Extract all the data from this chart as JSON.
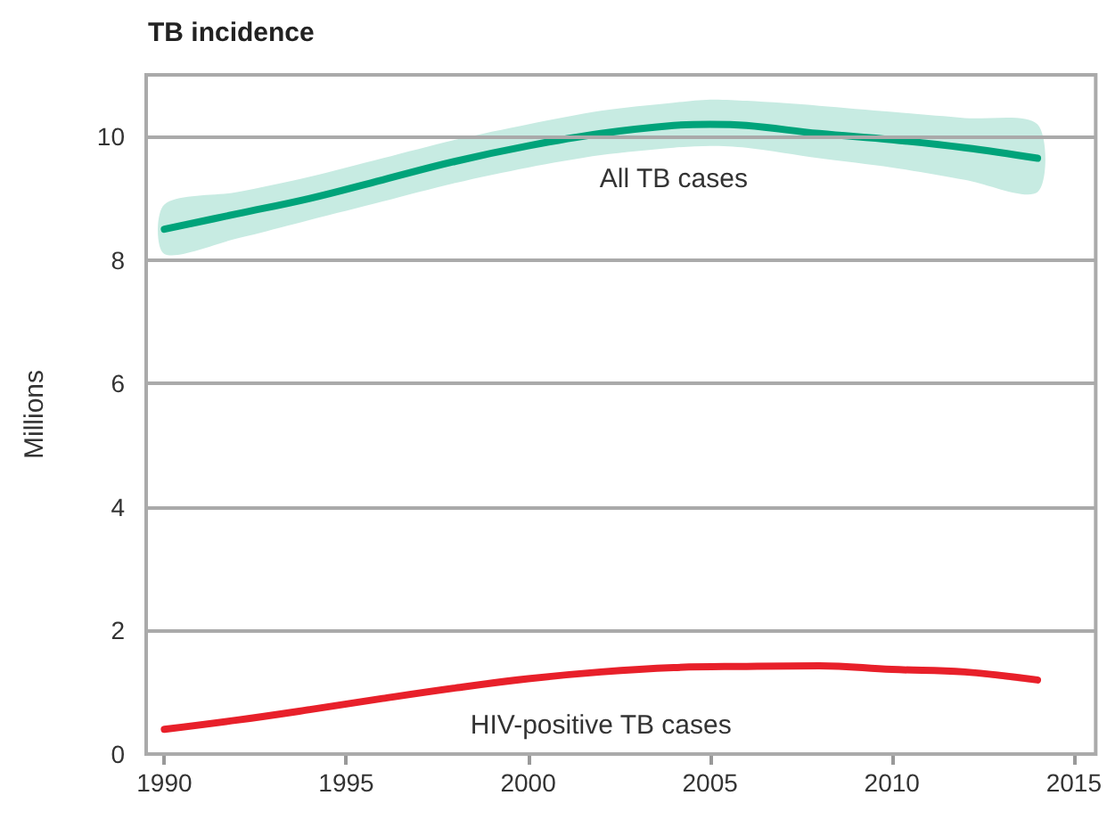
{
  "chart_data": {
    "type": "line",
    "title": "TB incidence",
    "ylabel": "Millions",
    "xlim": [
      1989.5,
      2015.6
    ],
    "xticks": [
      1990,
      1995,
      2000,
      2005,
      2010,
      2015
    ],
    "ylim": [
      0,
      11
    ],
    "yticks": [
      0,
      2,
      4,
      6,
      8,
      10
    ],
    "grid": "y",
    "legend": false,
    "marker": "none",
    "line_style": "solid",
    "series": [
      {
        "name": "All TB cases",
        "color": "#00a37a",
        "x": [
          1990,
          1992,
          1994,
          1996,
          1998,
          2000,
          2002,
          2004,
          2005,
          2006,
          2008,
          2010,
          2012,
          2014
        ],
        "values": [
          8.5,
          8.75,
          9.0,
          9.3,
          9.6,
          9.85,
          10.05,
          10.18,
          10.2,
          10.18,
          10.05,
          9.95,
          9.82,
          9.65
        ],
        "lower": [
          8.1,
          8.35,
          8.65,
          8.95,
          9.25,
          9.5,
          9.7,
          9.82,
          9.85,
          9.82,
          9.65,
          9.5,
          9.3,
          9.1
        ],
        "upper": [
          8.9,
          9.1,
          9.35,
          9.65,
          9.95,
          10.2,
          10.42,
          10.55,
          10.6,
          10.58,
          10.5,
          10.4,
          10.3,
          10.2
        ]
      },
      {
        "name": "HIV-positive TB cases",
        "color": "#e8202a",
        "x": [
          1990,
          1992,
          1994,
          1996,
          1998,
          2000,
          2002,
          2004,
          2006,
          2008,
          2010,
          2012,
          2014
        ],
        "values": [
          0.4,
          0.55,
          0.72,
          0.9,
          1.07,
          1.22,
          1.33,
          1.4,
          1.42,
          1.43,
          1.37,
          1.33,
          1.2
        ],
        "lower": [
          0.36,
          0.51,
          0.68,
          0.86,
          1.03,
          1.18,
          1.29,
          1.36,
          1.38,
          1.38,
          1.33,
          1.29,
          1.15
        ],
        "upper": [
          0.44,
          0.59,
          0.76,
          0.94,
          1.11,
          1.26,
          1.37,
          1.44,
          1.46,
          1.48,
          1.41,
          1.37,
          1.25
        ]
      }
    ]
  }
}
